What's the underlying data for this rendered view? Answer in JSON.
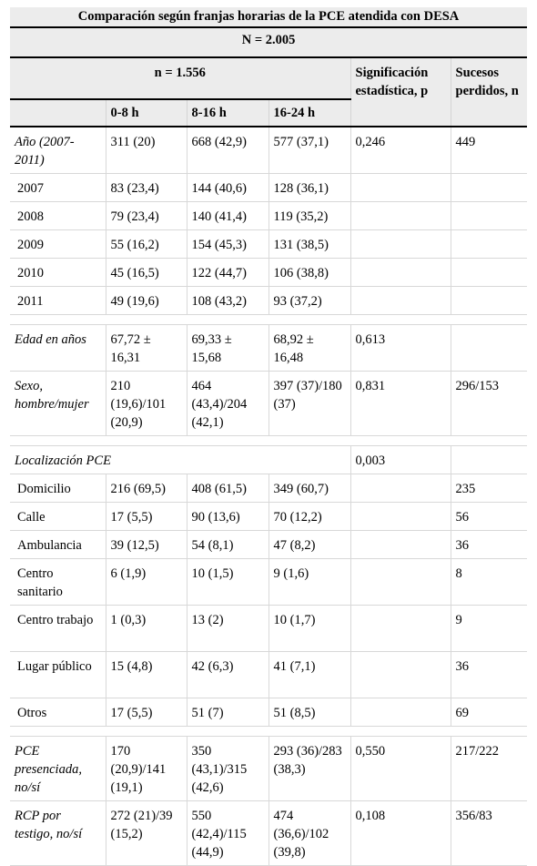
{
  "title": "Comparación según franjas horarias de la PCE atendida con DESA",
  "n_total": "N = 2.005",
  "n_sub": "n = 1.556",
  "columns": {
    "col1": "0-8 h",
    "col2": "8-16 h",
    "col3": "16-24 h",
    "sig": "Significación estadística, p",
    "lost": "Sucesos perdidos, n"
  },
  "rows": {
    "anio": [
      "Año (2007-2011)",
      "311 (20)",
      "668 (42,9)",
      "577 (37,1)",
      "0,246",
      "449"
    ],
    "y2007": [
      "2007",
      "83 (23,4)",
      "144 (40,6)",
      "128 (36,1)",
      "",
      ""
    ],
    "y2008": [
      "2008",
      "79 (23,4)",
      "140 (41,4)",
      "119 (35,2)",
      "",
      ""
    ],
    "y2009": [
      "2009",
      "55 (16,2)",
      "154 (45,3)",
      "131 (38,5)",
      "",
      ""
    ],
    "y2010": [
      "2010",
      "45 (16,5)",
      "122 (44,7)",
      "106 (38,8)",
      "",
      ""
    ],
    "y2011": [
      "2011",
      "49 (19,6)",
      "108 (43,2)",
      "93 (37,2)",
      "",
      ""
    ],
    "edad": [
      "Edad en años",
      "67,72 ± 16,31",
      "69,33 ± 15,68",
      "68,92 ± 16,48",
      "0,613",
      ""
    ],
    "sexo": [
      "Sexo, hombre/mujer",
      "210 (19,6)/101 (20,9)",
      "464 (43,4)/204 (42,1)",
      "397 (37)/180 (37)",
      "0,831",
      "296/153"
    ],
    "loc": [
      "Localización PCE",
      "0,003"
    ],
    "domicilio": [
      "Domicilio",
      "216 (69,5)",
      "408 (61,5)",
      "349 (60,7)",
      "",
      "235"
    ],
    "calle": [
      "Calle",
      "17 (5,5)",
      "90 (13,6)",
      "70 (12,2)",
      "",
      "56"
    ],
    "ambulancia": [
      "Ambulancia",
      "39 (12,5)",
      "54 (8,1)",
      "47 (8,2)",
      "",
      "36"
    ],
    "centro_sanitario": [
      "Centro sanitario",
      "6 (1,9)",
      "10 (1,5)",
      "9 (1,6)",
      "",
      "8"
    ],
    "centro_trabajo": [
      "Centro trabajo",
      "1 (0,3)",
      "13 (2)",
      "10 (1,7)",
      "",
      "9"
    ],
    "lugar_publico": [
      "Lugar público",
      "15 (4,8)",
      "42 (6,3)",
      "41 (7,1)",
      "",
      "36"
    ],
    "otros": [
      "Otros",
      "17 (5,5)",
      "51 (7)",
      "51 (8,5)",
      "",
      "69"
    ],
    "presenciada": [
      "PCE presenciada, no/sí",
      "170 (20,9)/141 (19,1)",
      "350 (43,1)/315 (42,6)",
      "293 (36)/283 (38,3)",
      "0,550",
      "217/222"
    ],
    "rcp": [
      "RCP por testigo, no/sí",
      "272 (21)/39 (15,2)",
      "550 (42,4)/115 (44,9)",
      "474 (36,6)/102 (39,8)",
      "0,108",
      "356/83"
    ]
  }
}
